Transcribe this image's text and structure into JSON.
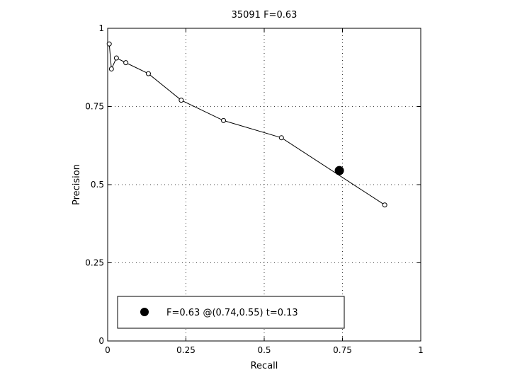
{
  "chart_data": {
    "type": "line",
    "title": "35091 F=0.63",
    "xlabel": "Recall",
    "ylabel": "Precision",
    "xlim": [
      0,
      1
    ],
    "ylim": [
      0,
      1
    ],
    "grid": true,
    "x_ticks": [
      "0",
      "0.25",
      "0.5",
      "0.75",
      "1"
    ],
    "y_ticks": [
      "0",
      "0.25",
      "0.5",
      "0.75",
      "1"
    ],
    "series": [
      {
        "x": [
          0.005,
          0.012,
          0.028,
          0.058,
          0.13,
          0.235,
          0.37,
          0.555,
          0.885
        ],
        "y": [
          0.95,
          0.87,
          0.905,
          0.89,
          0.855,
          0.77,
          0.705,
          0.65,
          0.435
        ]
      }
    ],
    "highlight": {
      "x": 0.74,
      "y": 0.545
    },
    "legend": {
      "position": "bottom",
      "text": "F=0.63 @(0.74,0.55) t=0.13"
    }
  }
}
